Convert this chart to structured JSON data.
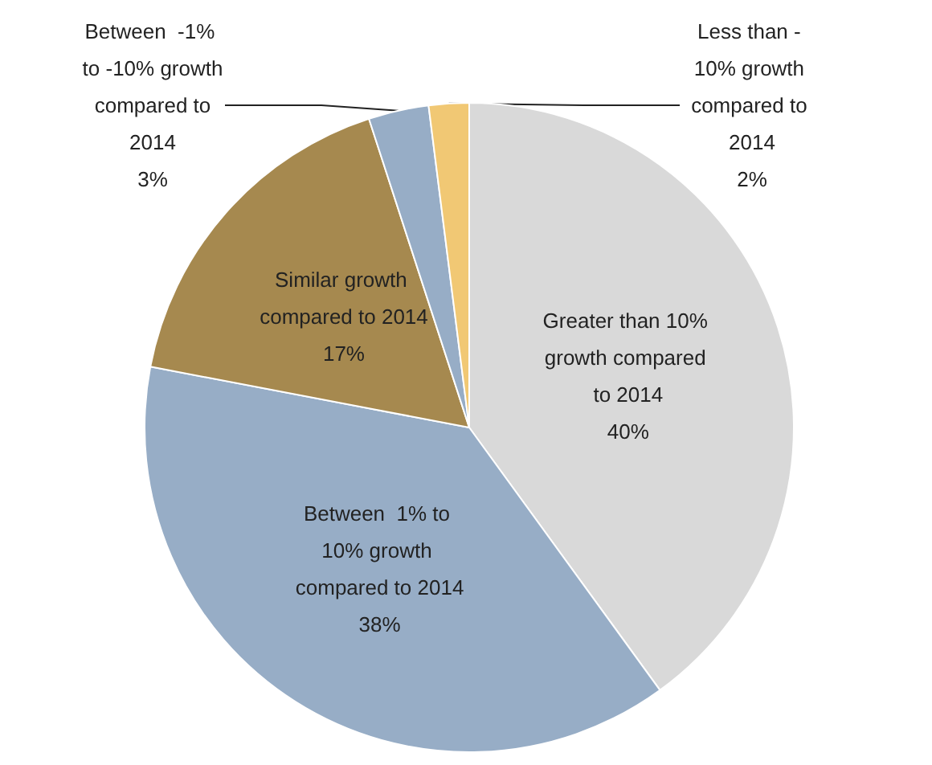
{
  "chart_data": {
    "type": "pie",
    "categories": [
      "Greater than 10% growth compared to 2014",
      "Between  1% to 10% growth compared to 2014",
      "Similar growth compared to 2014",
      "Between  -1% to -10% growth compared to 2014",
      "Less than - 10% growth compared to 2014"
    ],
    "values": [
      40,
      38,
      17,
      3,
      2
    ],
    "value_labels": [
      "40%",
      "38%",
      "17%",
      "3%",
      "2%"
    ],
    "colors": [
      "#d9d9d9",
      "#97adc6",
      "#a6894f",
      "#97adc6",
      "#f1c874"
    ],
    "legend": false
  }
}
